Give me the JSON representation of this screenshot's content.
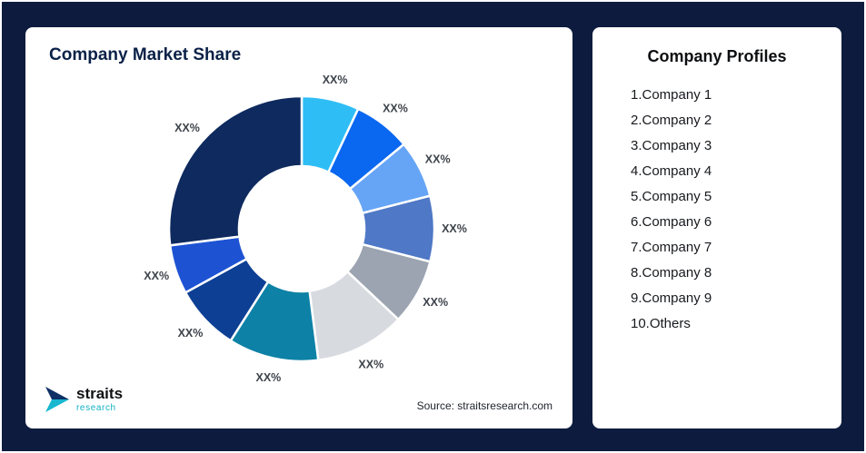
{
  "page": {
    "background_color": "#0d1c3e"
  },
  "left_card": {
    "title": "Company Market Share",
    "source_text": "Source: straitsresearch.com",
    "logo_text": "straits",
    "logo_subtext": "research"
  },
  "right_card": {
    "title": "Company Profiles",
    "items": [
      "1.Company 1",
      "2.Company 2",
      "3.Company 3",
      "4.Company 4",
      "5.Company 5",
      "6.Company 6",
      "7.Company 7",
      "8.Company 8",
      "9.Company 9",
      "10.Others"
    ]
  },
  "chart_data": {
    "type": "pie",
    "variant": "donut",
    "title": "Company Market Share",
    "legend": "none",
    "value_labels_shown_as": "XX%",
    "shares_estimated_from_arc_angles": true,
    "label_color": "#3d434b",
    "segments": [
      {
        "label": "XX%",
        "share": 7,
        "color": "#2fbdf6"
      },
      {
        "label": "XX%",
        "share": 7,
        "color": "#0a67f0"
      },
      {
        "label": "XX%",
        "share": 7,
        "color": "#66a4f6"
      },
      {
        "label": "XX%",
        "share": 8,
        "color": "#4f78c6"
      },
      {
        "label": "XX%",
        "share": 8,
        "color": "#9ba4b0"
      },
      {
        "label": "XX%",
        "share": 11,
        "color": "#d7dadf"
      },
      {
        "label": "XX%",
        "share": 11,
        "color": "#0d81a6"
      },
      {
        "label": "XX%",
        "share": 8,
        "color": "#0d3f94"
      },
      {
        "label": "XX%",
        "share": 6,
        "color": "#1d53d3"
      },
      {
        "label": "XX%",
        "share": 27,
        "color": "#0e2a5f"
      }
    ]
  }
}
